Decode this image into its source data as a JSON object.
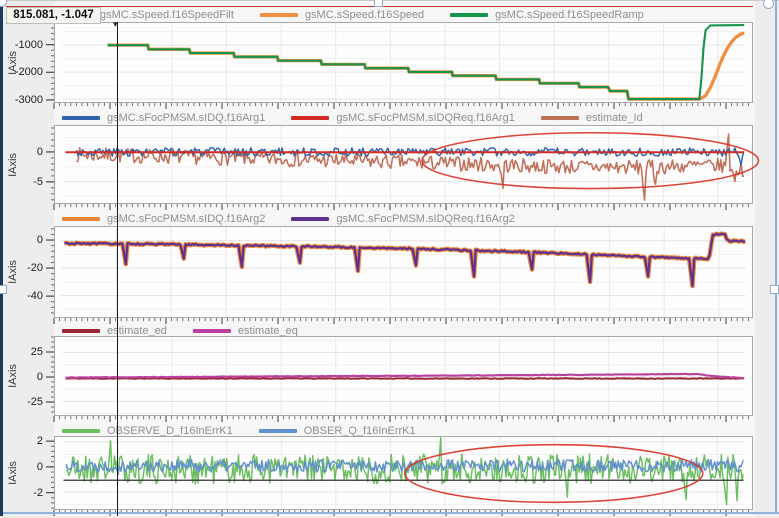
{
  "readout": {
    "text": "815.081, -1.047"
  },
  "annotation_color": "#d93025",
  "chrome": {
    "left_border_color": "#1c3a5e",
    "selection_frame_color": "#8db3dc",
    "record_line_color": "#c23a30"
  },
  "chart_data": {
    "type": "line",
    "time_cursor": {
      "x_frac": 0.0901,
      "readout": "815.081, -1.047"
    },
    "panels": [
      {
        "axis_label": "IAxis",
        "yticks": [
          -1000,
          -2000,
          -3000
        ],
        "ylim": [
          -3110,
          -180
        ],
        "legend": [
          {
            "label": "gsMC.sSpeed.f16SpeedFilt",
            "color": null
          },
          {
            "label": "gsMC.sSpeed.f16Speed",
            "color": "#ef8f43"
          },
          {
            "label": "gsMC.sSpeed.f16SpeedRamp",
            "color": "#18954d"
          }
        ],
        "series": [
          {
            "name": "gsMC.sSpeed.f16Speed",
            "color": "#ef8f43",
            "width": 3.4,
            "points": [
              [
                0.066,
                -1000
              ],
              [
                0.125,
                -1000
              ],
              [
                0.126,
                -1155
              ],
              [
                0.186,
                -1155
              ],
              [
                0.187,
                -1295
              ],
              [
                0.251,
                -1295
              ],
              [
                0.252,
                -1435
              ],
              [
                0.315,
                -1435
              ],
              [
                0.316,
                -1575
              ],
              [
                0.379,
                -1575
              ],
              [
                0.38,
                -1715
              ],
              [
                0.443,
                -1715
              ],
              [
                0.444,
                -1855
              ],
              [
                0.507,
                -1855
              ],
              [
                0.508,
                -1995
              ],
              [
                0.571,
                -1995
              ],
              [
                0.572,
                -2135
              ],
              [
                0.635,
                -2135
              ],
              [
                0.636,
                -2275
              ],
              [
                0.699,
                -2275
              ],
              [
                0.7,
                -2415
              ],
              [
                0.757,
                -2415
              ],
              [
                0.758,
                -2555
              ],
              [
                0.8,
                -2555
              ],
              [
                0.803,
                -2705
              ],
              [
                0.828,
                -2705
              ],
              [
                0.83,
                -3000
              ],
              [
                0.934,
                -3000
              ],
              [
                0.943,
                -2880
              ],
              [
                0.95,
                -2580
              ],
              [
                0.957,
                -2180
              ],
              [
                0.963,
                -1780
              ],
              [
                0.969,
                -1420
              ],
              [
                0.975,
                -1120
              ],
              [
                0.981,
                -890
              ],
              [
                0.988,
                -700
              ],
              [
                0.995,
                -590
              ],
              [
                1.0,
                -555
              ]
            ]
          },
          {
            "name": "gsMC.sSpeed.f16SpeedRamp",
            "color": "#18954d",
            "width": 2.2,
            "points": [
              [
                0.066,
                -1000
              ],
              [
                0.125,
                -1000
              ],
              [
                0.126,
                -1155
              ],
              [
                0.186,
                -1155
              ],
              [
                0.187,
                -1295
              ],
              [
                0.251,
                -1295
              ],
              [
                0.252,
                -1435
              ],
              [
                0.315,
                -1435
              ],
              [
                0.316,
                -1575
              ],
              [
                0.379,
                -1575
              ],
              [
                0.38,
                -1715
              ],
              [
                0.443,
                -1715
              ],
              [
                0.444,
                -1855
              ],
              [
                0.507,
                -1855
              ],
              [
                0.508,
                -1995
              ],
              [
                0.571,
                -1995
              ],
              [
                0.572,
                -2135
              ],
              [
                0.635,
                -2135
              ],
              [
                0.636,
                -2275
              ],
              [
                0.699,
                -2275
              ],
              [
                0.7,
                -2415
              ],
              [
                0.757,
                -2415
              ],
              [
                0.758,
                -2555
              ],
              [
                0.8,
                -2555
              ],
              [
                0.803,
                -2705
              ],
              [
                0.828,
                -2705
              ],
              [
                0.83,
                -3000
              ],
              [
                0.934,
                -3000
              ],
              [
                0.937,
                -2200
              ],
              [
                0.94,
                -1100
              ],
              [
                0.943,
                -450
              ],
              [
                0.95,
                -270
              ],
              [
                1.0,
                -255
              ]
            ]
          }
        ]
      },
      {
        "axis_label": "IAxis",
        "yticks": [
          0,
          -5
        ],
        "ylim": [
          -8.7,
          4.5
        ],
        "legend": [
          {
            "label": "gsMC.sFocPMSM.sIDQ.f16Arg1",
            "color": "#2e64ab"
          },
          {
            "label": "gsMC.sFocPMSM.sIDQReq.f16Arg1",
            "color": "#d12b24"
          },
          {
            "label": "estimate_Id",
            "color": "#c1705a"
          }
        ],
        "series": [
          {
            "name": "estimate_Id",
            "color": "#c1705a",
            "width": 1.6,
            "noise": {
              "seed": 7,
              "n": 430,
              "amp": 1.25,
              "range": [
                0.02,
                1.0
              ],
              "base": [
                [
                  0.02,
                  -0.4
                ],
                [
                  0.25,
                  -1.0
                ],
                [
                  0.5,
                  -1.7
                ],
                [
                  0.7,
                  -2.4
                ],
                [
                  0.85,
                  -2.6
                ],
                [
                  0.93,
                  -2.3
                ],
                [
                  0.975,
                  -2.3
                ],
                [
                  1.0,
                  -3.2
                ]
              ],
              "spikes": [
                [
                  0.645,
                  -6.2
                ],
                [
                  0.854,
                  -8.2
                ],
                [
                  0.87,
                  -5.5
                ],
                [
                  0.977,
                  3.1
                ],
                [
                  0.987,
                  -5.0
                ]
              ]
            }
          },
          {
            "name": "gsMC.sFocPMSM.sIDQ.f16Arg1",
            "color": "#2e64ab",
            "width": 1.5,
            "noise": {
              "seed": 3,
              "n": 430,
              "amp": 0.72,
              "range": [
                0.02,
                1.0
              ],
              "base": [
                [
                  0.02,
                  0.05
                ],
                [
                  1.0,
                  0.05
                ]
              ],
              "spikes": [
                [
                  0.995,
                  -2.2
                ]
              ]
            }
          },
          {
            "name": "gsMC.sFocPMSM.sIDQReq.f16Arg1",
            "color": "#d12b24",
            "width": 2.0,
            "points": [
              [
                0.004,
                0
              ],
              [
                1.0,
                0
              ]
            ]
          }
        ],
        "ellipse": {
          "cx": 0.774,
          "cy": 0.45,
          "rx": 0.247,
          "ry": 0.3625
        }
      },
      {
        "axis_label": "IAxis",
        "yticks": [
          0,
          -20,
          -40
        ],
        "ylim": [
          -55.6,
          10
        ],
        "legend": [
          {
            "label": "gsMC.sFocPMSM.sIDQ.f16Arg2",
            "color": "#e8873b"
          },
          {
            "label": "gsMC.sFocPMSM.sIDQReq.f16Arg2",
            "color": "#5c2f91"
          }
        ],
        "series": [
          {
            "name": "gsMC.sFocPMSM.sIDQReq.f16Arg2",
            "color": "#5c2f91",
            "width": 2.2,
            "halo_color": "#e8873b",
            "halo_width": 4.6,
            "noise": {
              "seed": 31,
              "n": 400,
              "amp": 0.55,
              "range": [
                0.004,
                1.0
              ],
              "base": [
                [
                  0.004,
                  -2
                ],
                [
                  0.1,
                  -2.3
                ],
                [
                  0.2,
                  -3
                ],
                [
                  0.3,
                  -3.7
                ],
                [
                  0.4,
                  -4.6
                ],
                [
                  0.5,
                  -5.6
                ],
                [
                  0.6,
                  -7
                ],
                [
                  0.7,
                  -8.6
                ],
                [
                  0.8,
                  -10.6
                ],
                [
                  0.9,
                  -12.6
                ],
                [
                  0.947,
                  -13
                ],
                [
                  0.952,
                  4.5
                ],
                [
                  0.97,
                  5
                ],
                [
                  0.9735,
                  0
                ],
                [
                  1.0,
                  -0.4
                ]
              ],
              "spikes": [
                [
                  0.093,
                  -17
                ],
                [
                  0.178,
                  -13
                ],
                [
                  0.263,
                  -19
                ],
                [
                  0.348,
                  -16
                ],
                [
                  0.433,
                  -22
                ],
                [
                  0.518,
                  -18
                ],
                [
                  0.603,
                  -26
                ],
                [
                  0.688,
                  -21
                ],
                [
                  0.773,
                  -30
                ],
                [
                  0.858,
                  -26
                ],
                [
                  0.923,
                  -33
                ]
              ]
            }
          }
        ]
      },
      {
        "axis_label": "IAxis",
        "yticks": [
          25,
          0,
          -25
        ],
        "ylim": [
          -39,
          41
        ],
        "legend": [
          {
            "label": "estimate_ed",
            "color": "#9c2633"
          },
          {
            "label": "estimate_eq",
            "color": "#b9409f"
          }
        ],
        "series": [
          {
            "name": "estimate_ed",
            "color": "#9c2633",
            "width": 2.0,
            "noise": {
              "seed": 11,
              "n": 300,
              "amp": 0.35,
              "range": [
                0.004,
                1.0
              ],
              "base": [
                [
                  0.004,
                  -1.6
                ],
                [
                  1.0,
                  -1.6
                ]
              ]
            }
          },
          {
            "name": "estimate_eq",
            "color": "#b9409f",
            "width": 2.2,
            "noise": {
              "seed": 12,
              "n": 300,
              "amp": 0.25,
              "range": [
                0.004,
                1.0
              ],
              "base": [
                [
                  0.004,
                  -0.6
                ],
                [
                  0.3,
                  0.6
                ],
                [
                  0.6,
                  1.6
                ],
                [
                  0.93,
                  3.0
                ],
                [
                  0.965,
                  0.3
                ],
                [
                  1.0,
                  -1.2
                ]
              ]
            }
          }
        ]
      },
      {
        "axis_label": "IAxis",
        "yticks": [
          2,
          0,
          -2
        ],
        "ylim": [
          -3.35,
          2.4
        ],
        "legend": [
          {
            "label": "OBSERVE_D_f16InErrK1",
            "color": "#6cbf60"
          },
          {
            "label": "OBSER_Q_f16InErrK1",
            "color": "#6191cc"
          }
        ],
        "series": [
          {
            "name": "OBSERVE_D_f16InErrK1",
            "color": "#6cbf60",
            "width": 1.5,
            "noise": {
              "seed": 21,
              "n": 520,
              "amp": 1.2,
              "range": [
                0.004,
                1.0
              ],
              "base": [
                [
                  0.004,
                  -0.15
                ],
                [
                  1.0,
                  -0.15
                ]
              ],
              "spikes": [
                [
                  0.07,
                  2.1
                ],
                [
                  0.555,
                  2.35
                ],
                [
                  0.74,
                  -2.4
                ],
                [
                  0.915,
                  -2.6
                ],
                [
                  0.975,
                  -3.0
                ],
                [
                  0.99,
                  -2.7
                ]
              ]
            }
          },
          {
            "name": "OBSER_Q_f16InErrK1",
            "color": "#6191cc",
            "width": 1.5,
            "noise": {
              "seed": 22,
              "n": 520,
              "amp": 0.5,
              "range": [
                0.004,
                1.0
              ],
              "base": [
                [
                  0.004,
                  0.1
                ],
                [
                  1.0,
                  0.1
                ]
              ]
            }
          }
        ],
        "hcursor_value": -1.05,
        "ellipse": {
          "cx": 0.721,
          "cy": 0.507,
          "rx": 0.219,
          "ry": 0.4
        }
      }
    ]
  }
}
